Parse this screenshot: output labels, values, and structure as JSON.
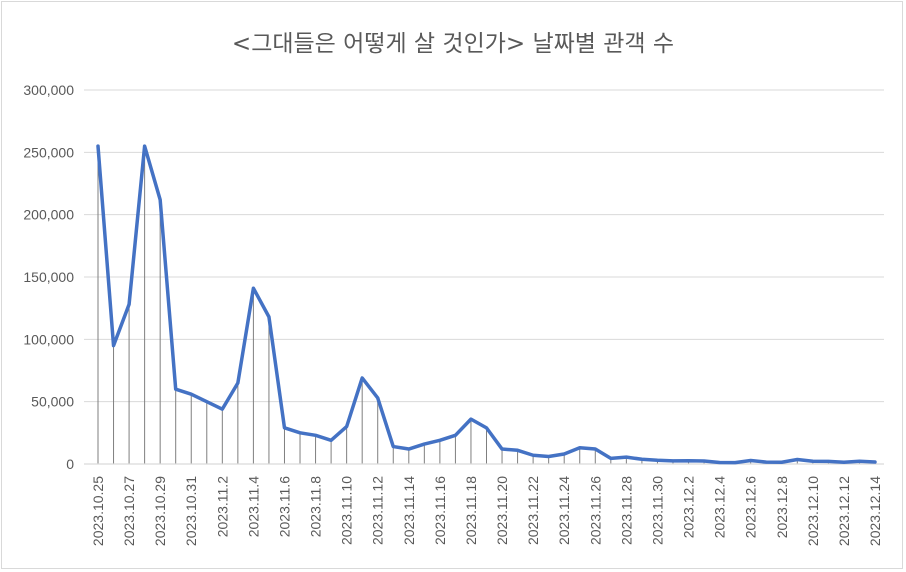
{
  "chart_data": {
    "type": "line",
    "title": "<그대들은 어떻게 살 것인가> 날짜별 관객 수",
    "xlabel": "",
    "ylabel": "",
    "ylim": [
      0,
      300000
    ],
    "y_ticks": [
      "0",
      "50,000",
      "100,000",
      "150,000",
      "200,000",
      "250,000",
      "300,000"
    ],
    "grid": true,
    "drop_lines": true,
    "x": [
      "2023.10.25",
      "2023.10.26",
      "2023.10.27",
      "2023.10.28",
      "2023.10.29",
      "2023.10.30",
      "2023.10.31",
      "2023.11.1",
      "2023.11.2",
      "2023.11.3",
      "2023.11.4",
      "2023.11.5",
      "2023.11.6",
      "2023.11.7",
      "2023.11.8",
      "2023.11.9",
      "2023.11.10",
      "2023.11.11",
      "2023.11.12",
      "2023.11.13",
      "2023.11.14",
      "2023.11.15",
      "2023.11.16",
      "2023.11.17",
      "2023.11.18",
      "2023.11.19",
      "2023.11.20",
      "2023.11.21",
      "2023.11.22",
      "2023.11.23",
      "2023.11.24",
      "2023.11.25",
      "2023.11.26",
      "2023.11.27",
      "2023.11.28",
      "2023.11.29",
      "2023.11.30",
      "2023.12.1",
      "2023.12.2",
      "2023.12.3",
      "2023.12.4",
      "2023.12.5",
      "2023.12.6",
      "2023.12.7",
      "2023.12.8",
      "2023.12.9",
      "2023.12.10",
      "2023.12.11",
      "2023.12.12",
      "2023.12.13",
      "2023.12.14"
    ],
    "x_tick_labels": [
      "2023.10.25",
      "2023.10.27",
      "2023.10.29",
      "2023.10.31",
      "2023.11.2",
      "2023.11.4",
      "2023.11.6",
      "2023.11.8",
      "2023.11.10",
      "2023.11.12",
      "2023.11.14",
      "2023.11.16",
      "2023.11.18",
      "2023.11.20",
      "2023.11.22",
      "2023.11.24",
      "2023.11.26",
      "2023.11.28",
      "2023.11.30",
      "2023.12.2",
      "2023.12.4",
      "2023.12.6",
      "2023.12.8",
      "2023.12.10",
      "2023.12.12",
      "2023.12.14"
    ],
    "series": [
      {
        "values": [
          255000,
          95000,
          128000,
          255000,
          212000,
          60000,
          56000,
          50000,
          44000,
          65000,
          141000,
          118000,
          29000,
          25000,
          23000,
          19000,
          30000,
          69000,
          53000,
          14000,
          12000,
          16000,
          19000,
          23000,
          36000,
          29000,
          12000,
          11000,
          7000,
          6000,
          8000,
          13000,
          12000,
          4500,
          5500,
          3800,
          3000,
          2500,
          2600,
          2400,
          1200,
          1100,
          2800,
          1500,
          1400,
          3600,
          2200,
          2100,
          1400,
          2200,
          1600
        ]
      }
    ],
    "colors": {
      "line": "#4472c4",
      "drop_line": "#7f7f7f",
      "grid": "#d9d9d9",
      "text": "#595959"
    }
  }
}
